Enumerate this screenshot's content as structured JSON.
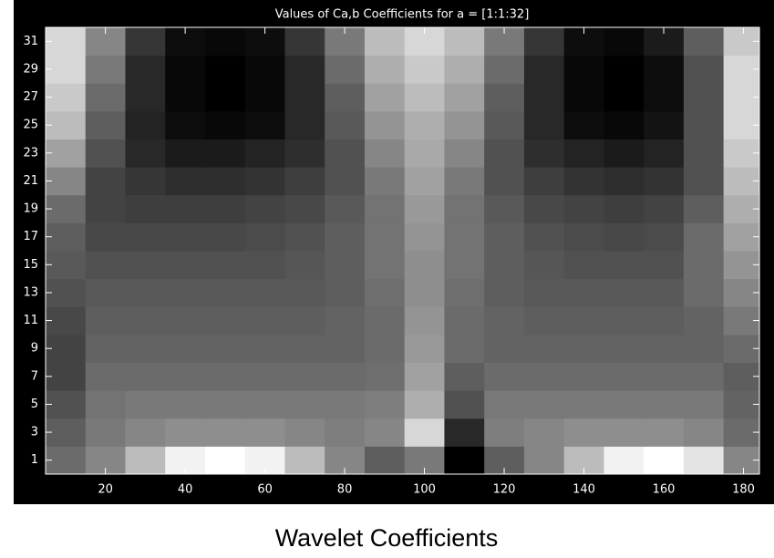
{
  "chart_data": {
    "type": "heatmap",
    "title": "Values of Ca,b Coefficients for a = [1:1:32]",
    "caption": "Wavelet Coefficients",
    "colormap": "gray",
    "x": [
      10,
      20,
      30,
      40,
      50,
      60,
      70,
      80,
      90,
      100,
      110,
      120,
      130,
      140,
      150,
      160,
      170,
      180
    ],
    "y": [
      1,
      3,
      5,
      7,
      9,
      11,
      13,
      15,
      17,
      19,
      21,
      23,
      25,
      27,
      29,
      31
    ],
    "values": [
      [
        45,
        55,
        75,
        95,
        100,
        95,
        75,
        55,
        40,
        50,
        5,
        40,
        55,
        75,
        95,
        100,
        90,
        55
      ],
      [
        40,
        50,
        55,
        58,
        58,
        58,
        55,
        52,
        55,
        85,
        20,
        52,
        55,
        58,
        58,
        58,
        55,
        45
      ],
      [
        35,
        48,
        50,
        50,
        50,
        50,
        50,
        50,
        52,
        70,
        35,
        50,
        50,
        50,
        50,
        50,
        50,
        42
      ],
      [
        30,
        45,
        45,
        45,
        45,
        45,
        45,
        45,
        46,
        65,
        40,
        45,
        45,
        45,
        45,
        45,
        45,
        40
      ],
      [
        30,
        42,
        42,
        42,
        42,
        42,
        42,
        42,
        45,
        62,
        45,
        42,
        42,
        42,
        42,
        42,
        42,
        45
      ],
      [
        32,
        40,
        40,
        40,
        40,
        40,
        40,
        42,
        45,
        60,
        45,
        42,
        40,
        40,
        40,
        40,
        42,
        50
      ],
      [
        35,
        38,
        38,
        38,
        38,
        38,
        38,
        40,
        46,
        58,
        46,
        40,
        38,
        38,
        38,
        38,
        45,
        55
      ],
      [
        38,
        35,
        35,
        35,
        35,
        35,
        37,
        40,
        48,
        58,
        48,
        40,
        37,
        35,
        35,
        35,
        45,
        60
      ],
      [
        40,
        32,
        32,
        32,
        32,
        33,
        35,
        40,
        48,
        60,
        48,
        40,
        35,
        33,
        32,
        33,
        45,
        65
      ],
      [
        45,
        30,
        28,
        28,
        28,
        30,
        32,
        38,
        48,
        62,
        48,
        38,
        32,
        30,
        28,
        30,
        40,
        70
      ],
      [
        55,
        30,
        25,
        22,
        22,
        24,
        28,
        35,
        50,
        65,
        50,
        35,
        28,
        24,
        22,
        24,
        35,
        75
      ],
      [
        65,
        35,
        20,
        15,
        15,
        18,
        22,
        35,
        55,
        68,
        55,
        35,
        22,
        18,
        15,
        18,
        35,
        80
      ],
      [
        75,
        40,
        18,
        10,
        8,
        10,
        20,
        38,
        60,
        70,
        60,
        38,
        20,
        10,
        8,
        12,
        35,
        85
      ],
      [
        80,
        45,
        20,
        8,
        5,
        8,
        20,
        40,
        65,
        75,
        65,
        40,
        20,
        8,
        5,
        10,
        35,
        85
      ],
      [
        85,
        50,
        20,
        8,
        5,
        8,
        20,
        45,
        70,
        80,
        70,
        45,
        20,
        8,
        5,
        10,
        35,
        85
      ],
      [
        85,
        55,
        25,
        10,
        8,
        10,
        25,
        50,
        75,
        85,
        75,
        50,
        25,
        10,
        8,
        15,
        40,
        80
      ]
    ],
    "xlim": [
      5,
      184
    ],
    "ylim": [
      0,
      32
    ],
    "xticks": [
      20,
      40,
      60,
      80,
      100,
      120,
      140,
      160,
      180
    ],
    "yticks": [
      1,
      3,
      5,
      7,
      9,
      11,
      13,
      15,
      17,
      19,
      21,
      23,
      25,
      27,
      29,
      31
    ]
  }
}
